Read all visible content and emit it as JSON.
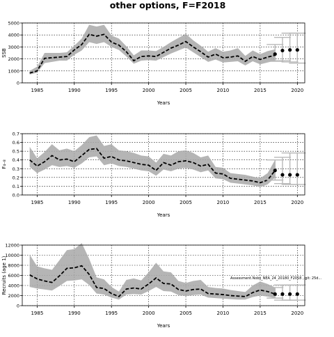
{
  "title": "other options, F=F2018",
  "x_ticks": [
    1985,
    1990,
    1995,
    2000,
    2005,
    2010,
    2015,
    2020
  ],
  "chart_data": [
    {
      "type": "line",
      "xlabel": "Years",
      "ylabel": "SSB",
      "ylim": [
        0,
        5000
      ],
      "xlim": [
        1983,
        2021
      ],
      "y_ticks": [
        0,
        1000,
        2000,
        3000,
        4000,
        5000
      ],
      "grid": "on",
      "x": [
        1984,
        1985,
        1986,
        1987,
        1988,
        1989,
        1990,
        1991,
        1992,
        1993,
        1994,
        1995,
        1996,
        1997,
        1998,
        1999,
        2000,
        2001,
        2002,
        2003,
        2004,
        2005,
        2006,
        2007,
        2008,
        2009,
        2010,
        2011,
        2012,
        2013,
        2014,
        2015,
        2016,
        2017
      ],
      "series": [
        {
          "role": "estimate",
          "values": [
            820,
            1000,
            2050,
            2100,
            2150,
            2200,
            2750,
            3200,
            4050,
            3900,
            4050,
            3400,
            3150,
            2600,
            1850,
            2200,
            2250,
            2200,
            2550,
            2900,
            3150,
            3450,
            3000,
            2600,
            2150,
            2400,
            2100,
            2150,
            2250,
            1800,
            2200,
            1950,
            2150,
            2300
          ]
        },
        {
          "role": "upper",
          "values": [
            1000,
            1350,
            2500,
            2500,
            2500,
            2550,
            3100,
            3700,
            4850,
            4700,
            4850,
            3950,
            3700,
            3050,
            2300,
            2700,
            2700,
            2650,
            3000,
            3400,
            3750,
            4100,
            3550,
            3100,
            2600,
            2900,
            2600,
            2700,
            2900,
            2250,
            2700,
            2400,
            2650,
            2800
          ]
        },
        {
          "role": "lower",
          "values": [
            700,
            850,
            1650,
            1750,
            1850,
            1850,
            2350,
            2700,
            3400,
            3250,
            3400,
            3000,
            2750,
            2200,
            1600,
            1850,
            1900,
            1850,
            2150,
            2450,
            2700,
            2950,
            2550,
            2150,
            1750,
            1950,
            1700,
            1750,
            1800,
            1450,
            1800,
            1550,
            1700,
            1850
          ]
        }
      ],
      "forecast": {
        "x": [
          2017,
          2018,
          2019,
          2020
        ],
        "values": [
          2400,
          2700,
          2750,
          2750
        ],
        "upper": [
          3200,
          3800,
          4150,
          4150
        ],
        "lower": [
          1800,
          1850,
          1750,
          1650
        ]
      }
    },
    {
      "type": "line",
      "xlabel": "Years",
      "ylabel": "F₄₋₈",
      "ylim": [
        0,
        0.7
      ],
      "xlim": [
        1983,
        2021
      ],
      "y_ticks": [
        0.0,
        0.1,
        0.2,
        0.3,
        0.4,
        0.5,
        0.6,
        0.7
      ],
      "grid": "on",
      "x": [
        1984,
        1985,
        1986,
        1987,
        1988,
        1989,
        1990,
        1991,
        1992,
        1993,
        1994,
        1995,
        1996,
        1997,
        1998,
        1999,
        2000,
        2001,
        2002,
        2003,
        2004,
        2005,
        2006,
        2007,
        2008,
        2009,
        2010,
        2011,
        2012,
        2013,
        2014,
        2015,
        2016,
        2017
      ],
      "series": [
        {
          "role": "estimate",
          "values": [
            0.4,
            0.33,
            0.38,
            0.45,
            0.4,
            0.41,
            0.38,
            0.45,
            0.52,
            0.53,
            0.42,
            0.44,
            0.4,
            0.39,
            0.37,
            0.35,
            0.34,
            0.28,
            0.37,
            0.34,
            0.38,
            0.39,
            0.37,
            0.33,
            0.35,
            0.25,
            0.24,
            0.19,
            0.18,
            0.17,
            0.16,
            0.14,
            0.17,
            0.28
          ]
        },
        {
          "role": "upper",
          "values": [
            0.55,
            0.42,
            0.49,
            0.58,
            0.51,
            0.53,
            0.5,
            0.57,
            0.66,
            0.68,
            0.56,
            0.58,
            0.51,
            0.5,
            0.48,
            0.45,
            0.44,
            0.37,
            0.47,
            0.45,
            0.5,
            0.51,
            0.48,
            0.43,
            0.45,
            0.32,
            0.31,
            0.25,
            0.24,
            0.23,
            0.21,
            0.19,
            0.25,
            0.4
          ]
        },
        {
          "role": "lower",
          "values": [
            0.32,
            0.25,
            0.29,
            0.34,
            0.32,
            0.33,
            0.31,
            0.36,
            0.43,
            0.44,
            0.34,
            0.36,
            0.33,
            0.32,
            0.3,
            0.28,
            0.27,
            0.22,
            0.29,
            0.27,
            0.3,
            0.31,
            0.29,
            0.26,
            0.28,
            0.19,
            0.18,
            0.14,
            0.13,
            0.12,
            0.11,
            0.09,
            0.12,
            0.2
          ]
        }
      ],
      "forecast": {
        "x": [
          2017,
          2018,
          2019,
          2020
        ],
        "values": [
          0.28,
          0.23,
          0.23,
          0.23
        ],
        "upper": [
          0.4,
          0.43,
          0.48,
          0.48
        ],
        "lower": [
          0.17,
          0.13,
          0.12,
          0.12
        ]
      }
    },
    {
      "type": "line",
      "xlabel": "Years",
      "ylabel": "Recruits (age 1)",
      "ylim": [
        0,
        12000
      ],
      "xlim": [
        1983,
        2021
      ],
      "y_ticks": [
        0,
        2000,
        4000,
        6000,
        8000,
        10000,
        12000
      ],
      "grid": "on",
      "annotation": "Assessment.Nobs_NEA_24_20180_F2018 , git: 25d...",
      "x": [
        1984,
        1985,
        1986,
        1987,
        1988,
        1989,
        1990,
        1991,
        1992,
        1993,
        1994,
        1995,
        1996,
        1997,
        1998,
        1999,
        2000,
        2001,
        2002,
        2003,
        2004,
        2005,
        2006,
        2007,
        2008,
        2009,
        2010,
        2011,
        2012,
        2013,
        2014,
        2015,
        2016,
        2017
      ],
      "series": [
        {
          "role": "estimate",
          "values": [
            6100,
            5300,
            4900,
            4600,
            5900,
            7400,
            7500,
            7900,
            6200,
            3600,
            3400,
            2400,
            1800,
            3300,
            3500,
            3300,
            4300,
            5500,
            4400,
            4300,
            3200,
            2900,
            3200,
            3300,
            2400,
            2300,
            2200,
            2000,
            1900,
            1800,
            2600,
            3100,
            2800,
            2300
          ]
        },
        {
          "role": "upper",
          "values": [
            10100,
            7800,
            7400,
            7100,
            9000,
            11000,
            11200,
            12400,
            9300,
            5600,
            5200,
            3700,
            2800,
            5100,
            5400,
            5000,
            6600,
            8500,
            6800,
            6600,
            4900,
            4500,
            4900,
            5100,
            3700,
            3500,
            3400,
            3100,
            2900,
            2700,
            4000,
            4800,
            4300,
            3600
          ]
        },
        {
          "role": "lower",
          "values": [
            3700,
            3400,
            3200,
            3000,
            3900,
            4900,
            5000,
            5200,
            4100,
            2400,
            2200,
            1600,
            1200,
            2200,
            2300,
            2200,
            2900,
            3700,
            2900,
            2800,
            2100,
            1900,
            2100,
            2200,
            1600,
            1500,
            1400,
            1300,
            1200,
            1200,
            1700,
            2000,
            1800,
            1500
          ]
        }
      ],
      "forecast": {
        "x": [
          2017,
          2018,
          2019,
          2020
        ],
        "values": [
          2300,
          2300,
          2300,
          2300
        ],
        "upper": [
          3600,
          4100,
          4100,
          4100
        ],
        "lower": [
          1500,
          1100,
          1100,
          1100
        ]
      }
    }
  ]
}
